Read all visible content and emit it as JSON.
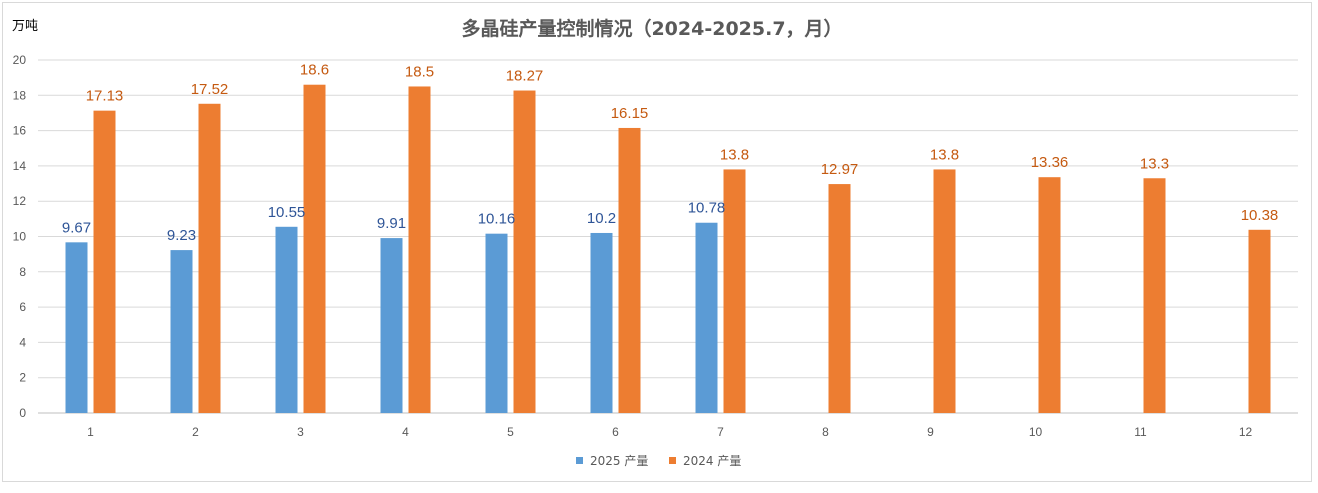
{
  "chart_data": {
    "type": "bar",
    "title": "多晶硅产量控制情况（2024-2025.7，月）",
    "ylabel": "万吨",
    "xlabel": "",
    "ylim": [
      0,
      20
    ],
    "yticks": [
      0,
      2,
      4,
      6,
      8,
      10,
      12,
      14,
      16,
      18,
      20
    ],
    "grid": true,
    "legend_position": "bottom",
    "categories": [
      "1",
      "2",
      "3",
      "4",
      "5",
      "6",
      "7",
      "8",
      "9",
      "10",
      "11",
      "12"
    ],
    "series": [
      {
        "name": "2025 产量",
        "color": "#5b9bd5",
        "label_color": "#2f5597",
        "values": [
          9.67,
          9.23,
          10.55,
          9.91,
          10.16,
          10.2,
          10.78,
          null,
          null,
          null,
          null,
          null
        ]
      },
      {
        "name": "2024 产量",
        "color": "#ed7d31",
        "label_color": "#c55a11",
        "values": [
          17.13,
          17.52,
          18.6,
          18.5,
          18.27,
          16.15,
          13.8,
          12.97,
          13.8,
          13.36,
          13.3,
          10.38
        ]
      }
    ]
  }
}
